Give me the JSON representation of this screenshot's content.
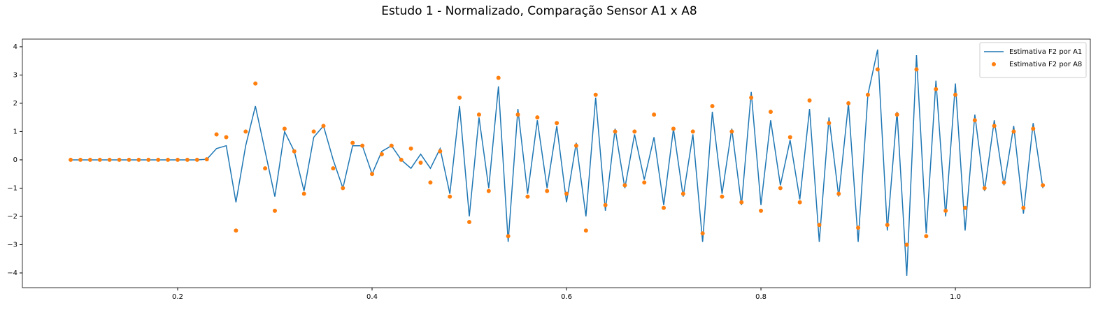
{
  "chart_data": {
    "type": "line",
    "title": "Estudo 1 - Normalizado, Comparação Sensor A1 x A8",
    "x": [
      0.09,
      0.1,
      0.11,
      0.12,
      0.13,
      0.14,
      0.15,
      0.16,
      0.17,
      0.18,
      0.19,
      0.2,
      0.21,
      0.22,
      0.23,
      0.24,
      0.25,
      0.26,
      0.27,
      0.28,
      0.29,
      0.3,
      0.31,
      0.32,
      0.33,
      0.34,
      0.35,
      0.36,
      0.37,
      0.38,
      0.39,
      0.4,
      0.41,
      0.42,
      0.43,
      0.44,
      0.45,
      0.46,
      0.47,
      0.48,
      0.49,
      0.5,
      0.51,
      0.52,
      0.53,
      0.54,
      0.55,
      0.56,
      0.57,
      0.58,
      0.59,
      0.6,
      0.61,
      0.62,
      0.63,
      0.64,
      0.65,
      0.66,
      0.67,
      0.68,
      0.69,
      0.7,
      0.71,
      0.72,
      0.73,
      0.74,
      0.75,
      0.76,
      0.77,
      0.78,
      0.79,
      0.8,
      0.81,
      0.82,
      0.83,
      0.84,
      0.85,
      0.86,
      0.87,
      0.88,
      0.89,
      0.9,
      0.91,
      0.92,
      0.93,
      0.94,
      0.95,
      0.96,
      0.97,
      0.98,
      0.99,
      1.0,
      1.01,
      1.02,
      1.03,
      1.04,
      1.05,
      1.06,
      1.07,
      1.08,
      1.09
    ],
    "series": [
      {
        "name": "Estimativa F2 por A1",
        "color": "#1f77b4",
        "style": "line",
        "values": [
          0,
          0,
          0,
          0,
          0,
          0,
          0,
          0,
          0,
          0,
          0,
          0,
          0,
          0,
          0.02,
          0.4,
          0.5,
          -1.5,
          0.5,
          1.9,
          0.3,
          -1.3,
          1.0,
          0.3,
          -1.1,
          0.8,
          1.2,
          0,
          -1.0,
          0.5,
          0.5,
          -0.5,
          0.3,
          0.5,
          0,
          -0.3,
          0.2,
          -0.3,
          0.4,
          -1.2,
          1.9,
          -2.0,
          1.5,
          -1.0,
          2.6,
          -2.9,
          1.8,
          -1.2,
          1.4,
          -1.0,
          1.2,
          -1.5,
          0.6,
          -2.0,
          2.2,
          -1.8,
          1.1,
          -1.0,
          0.9,
          -0.7,
          0.8,
          -1.6,
          1.1,
          -1.3,
          0.9,
          -2.9,
          1.7,
          -1.2,
          1.1,
          -1.6,
          2.4,
          -1.6,
          1.4,
          -0.9,
          0.7,
          -1.4,
          1.8,
          -2.9,
          1.5,
          -1.3,
          2.0,
          -2.9,
          2.3,
          3.9,
          -2.5,
          1.7,
          -4.1,
          3.7,
          -2.6,
          2.8,
          -2.0,
          2.7,
          -2.5,
          1.6,
          -1.1,
          1.4,
          -0.9,
          1.2,
          -1.9,
          1.3,
          -1.0
        ]
      },
      {
        "name": "Estimativa F2 por A8",
        "color": "#ff7f0e",
        "style": "markers",
        "values": [
          0,
          0,
          0,
          0,
          0,
          0,
          0,
          0,
          0,
          0,
          0,
          0,
          0,
          0,
          0.02,
          0.9,
          0.8,
          -2.5,
          1.0,
          2.7,
          -0.3,
          -1.8,
          1.1,
          0.3,
          -1.2,
          1.0,
          1.2,
          -0.3,
          -1.0,
          0.6,
          0.5,
          -0.5,
          0.2,
          0.5,
          0,
          0.4,
          -0.1,
          -0.8,
          0.3,
          -1.3,
          2.2,
          -2.2,
          1.6,
          -1.1,
          2.9,
          -2.7,
          1.6,
          -1.3,
          1.5,
          -1.1,
          1.3,
          -1.2,
          0.5,
          -2.5,
          2.3,
          -1.6,
          1.0,
          -0.9,
          1.0,
          -0.8,
          1.6,
          -1.7,
          1.1,
          -1.2,
          1.0,
          -2.6,
          1.9,
          -1.3,
          1.0,
          -1.5,
          2.2,
          -1.8,
          1.7,
          -1.0,
          0.8,
          -1.5,
          2.1,
          -2.3,
          1.3,
          -1.2,
          2.0,
          -2.4,
          2.3,
          3.2,
          -2.3,
          1.6,
          -3.0,
          3.2,
          -2.7,
          2.5,
          -1.8,
          2.3,
          -1.7,
          1.4,
          -1.0,
          1.2,
          -0.8,
          1.0,
          -1.7,
          1.1,
          -0.9
        ]
      }
    ],
    "xlim": [
      0.0403,
      1.1388
    ],
    "ylim": [
      -4.52,
      4.27
    ],
    "xticks": [
      0.2,
      0.4,
      0.6,
      0.8,
      {
        "value": 1,
        "label": "1.0"
      }
    ],
    "yticks": [
      {
        "value": -4,
        "label": "−4"
      },
      {
        "value": -3,
        "label": "−3"
      },
      {
        "value": -2,
        "label": "−2"
      },
      {
        "value": -1,
        "label": "−1"
      },
      0,
      1,
      2,
      3,
      4
    ],
    "legend": "upper right"
  }
}
